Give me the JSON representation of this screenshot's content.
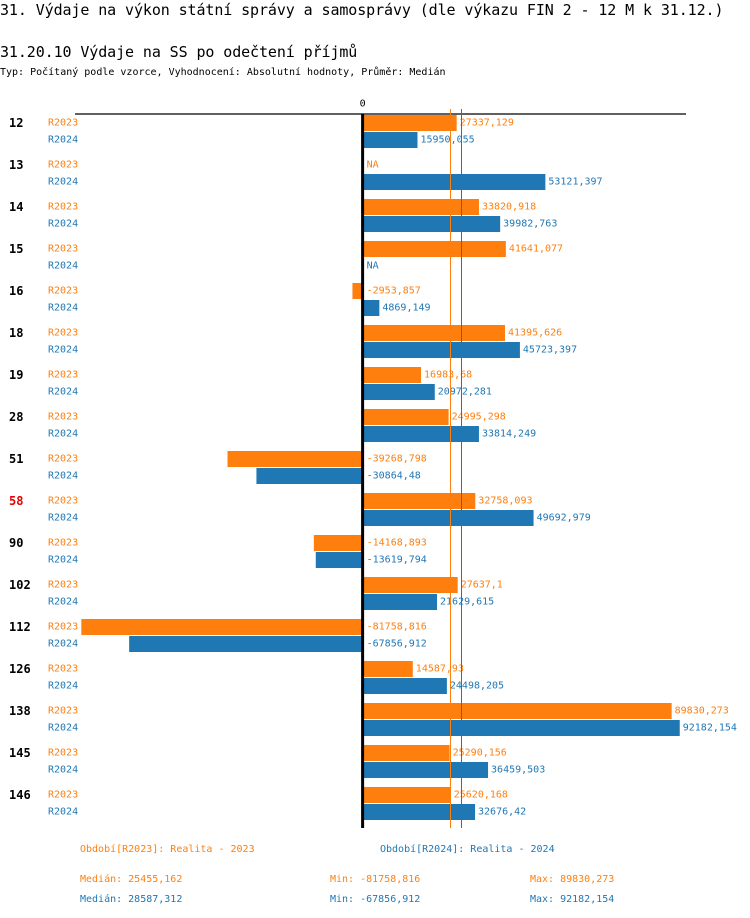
{
  "header": {
    "title": "31. Výdaje na výkon státní správy a samosprávy (dle výkazu FIN 2 - 12 M k 31.12.)",
    "subtitle": "31.20.10 Výdaje na SS po odečtení příjmů",
    "info": "Typ: Počítaný podle vzorce, Vyhodnocení: Absolutní hodnoty, Průměr: Medián"
  },
  "chart_data": {
    "type": "bar",
    "orientation": "horizontal",
    "title": "31.20.10 Výdaje na SS po odečtení příjmů",
    "xlabel": "",
    "ylabel": "",
    "zero_label": "0",
    "xlim": [
      -83600,
      94000
    ],
    "grid": false,
    "legend_placement": "bottom",
    "categories": [
      "12",
      "13",
      "14",
      "15",
      "16",
      "18",
      "19",
      "28",
      "51",
      "58",
      "90",
      "102",
      "112",
      "126",
      "138",
      "145",
      "146"
    ],
    "highlighted_category": "58",
    "highlight_color": "#e60000",
    "series": [
      {
        "name": "R2023",
        "legend": "Období[R2023]: Realita - 2023",
        "color": "#ff7f0e",
        "values": [
          27337.129,
          null,
          33820.918,
          41641.077,
          -2953.857,
          41395.626,
          16983.68,
          24995.298,
          -39268.798,
          32758.093,
          -14168.893,
          27637.1,
          -81758.816,
          14587.93,
          89830.273,
          25290.156,
          25620.168
        ],
        "value_labels": [
          "27337,129",
          "NA",
          "33820,918",
          "41641,077",
          "-2953,857",
          "41395,626",
          "16983,68",
          "24995,298",
          "-39268,798",
          "32758,093",
          "-14168,893",
          "27637,1",
          "-81758,816",
          "14587,93",
          "89830,273",
          "25290,156",
          "25620,168"
        ],
        "median": 25455.162,
        "min": -81758.816,
        "max": 89830.273
      },
      {
        "name": "R2024",
        "legend": "Období[R2024]: Realita - 2024",
        "color": "#1f77b4",
        "values": [
          15950.055,
          53121.397,
          39982.763,
          null,
          4869.149,
          45723.397,
          20972.281,
          33814.249,
          -30864.48,
          49692.979,
          -13619.794,
          21629.615,
          -67856.912,
          24498.205,
          92182.154,
          36459.503,
          32676.42
        ],
        "value_labels": [
          "15950,055",
          "53121,397",
          "39982,763",
          "NA",
          "4869,149",
          "45723,397",
          "20972,281",
          "33814,249",
          "-30864,48",
          "49692,979",
          "-13619,794",
          "21629,615",
          "-67856,912",
          "24498,205",
          "92182,154",
          "36459,503",
          "32676,42"
        ],
        "median": 28587.312,
        "min": -67856.912,
        "max": 92182.154
      }
    ]
  },
  "footer": {
    "legend_r2023": "Období[R2023]: Realita - 2023",
    "legend_r2024": "Období[R2024]: Realita - 2024",
    "stats_r2023": {
      "median": "Medián: 25455,162",
      "min": "Min: -81758,816",
      "max": "Max: 89830,273"
    },
    "stats_r2024": {
      "median": "Medián: 28587,312",
      "min": "Min: -67856,912",
      "max": "Max: 92182,154"
    }
  }
}
